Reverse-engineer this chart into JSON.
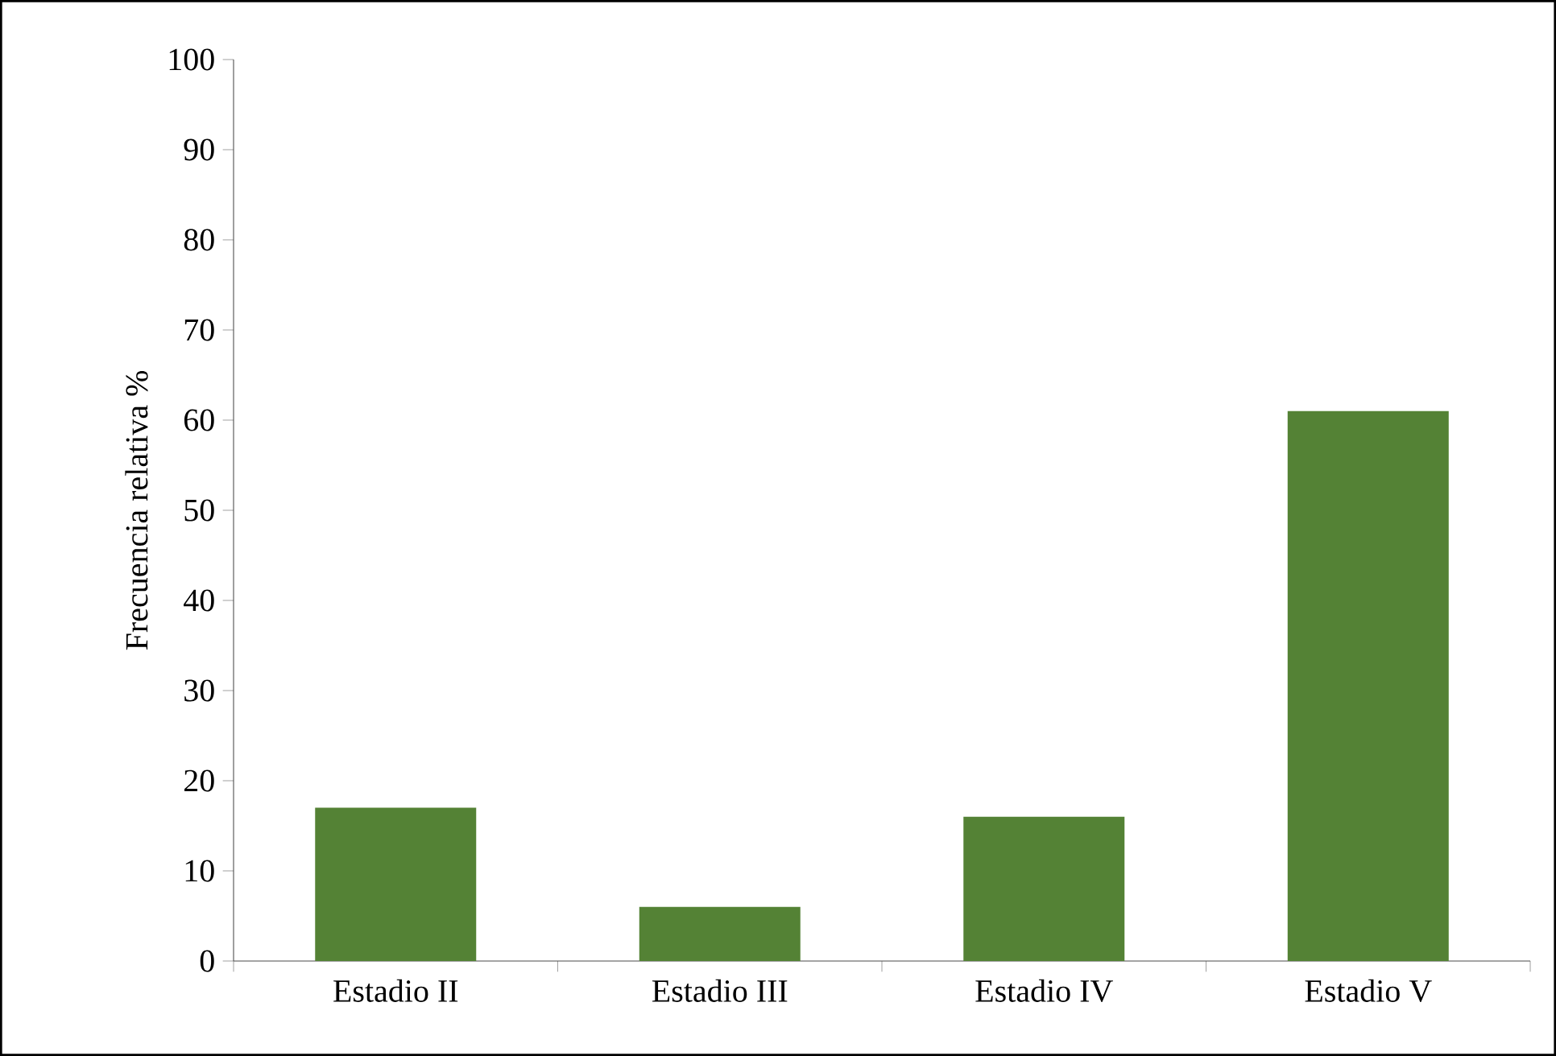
{
  "chart_data": {
    "type": "bar",
    "ylabel": "Frecuencia relativa %",
    "categories": [
      "Estadio II",
      "Estadio III",
      "Estadio IV",
      "Estadio V"
    ],
    "values": [
      17,
      6,
      16,
      61
    ],
    "color": "#548235",
    "ylim": [
      0,
      100
    ],
    "yticks": [
      0,
      10,
      20,
      30,
      40,
      50,
      60,
      70,
      80,
      90,
      100
    ],
    "grid": false
  }
}
